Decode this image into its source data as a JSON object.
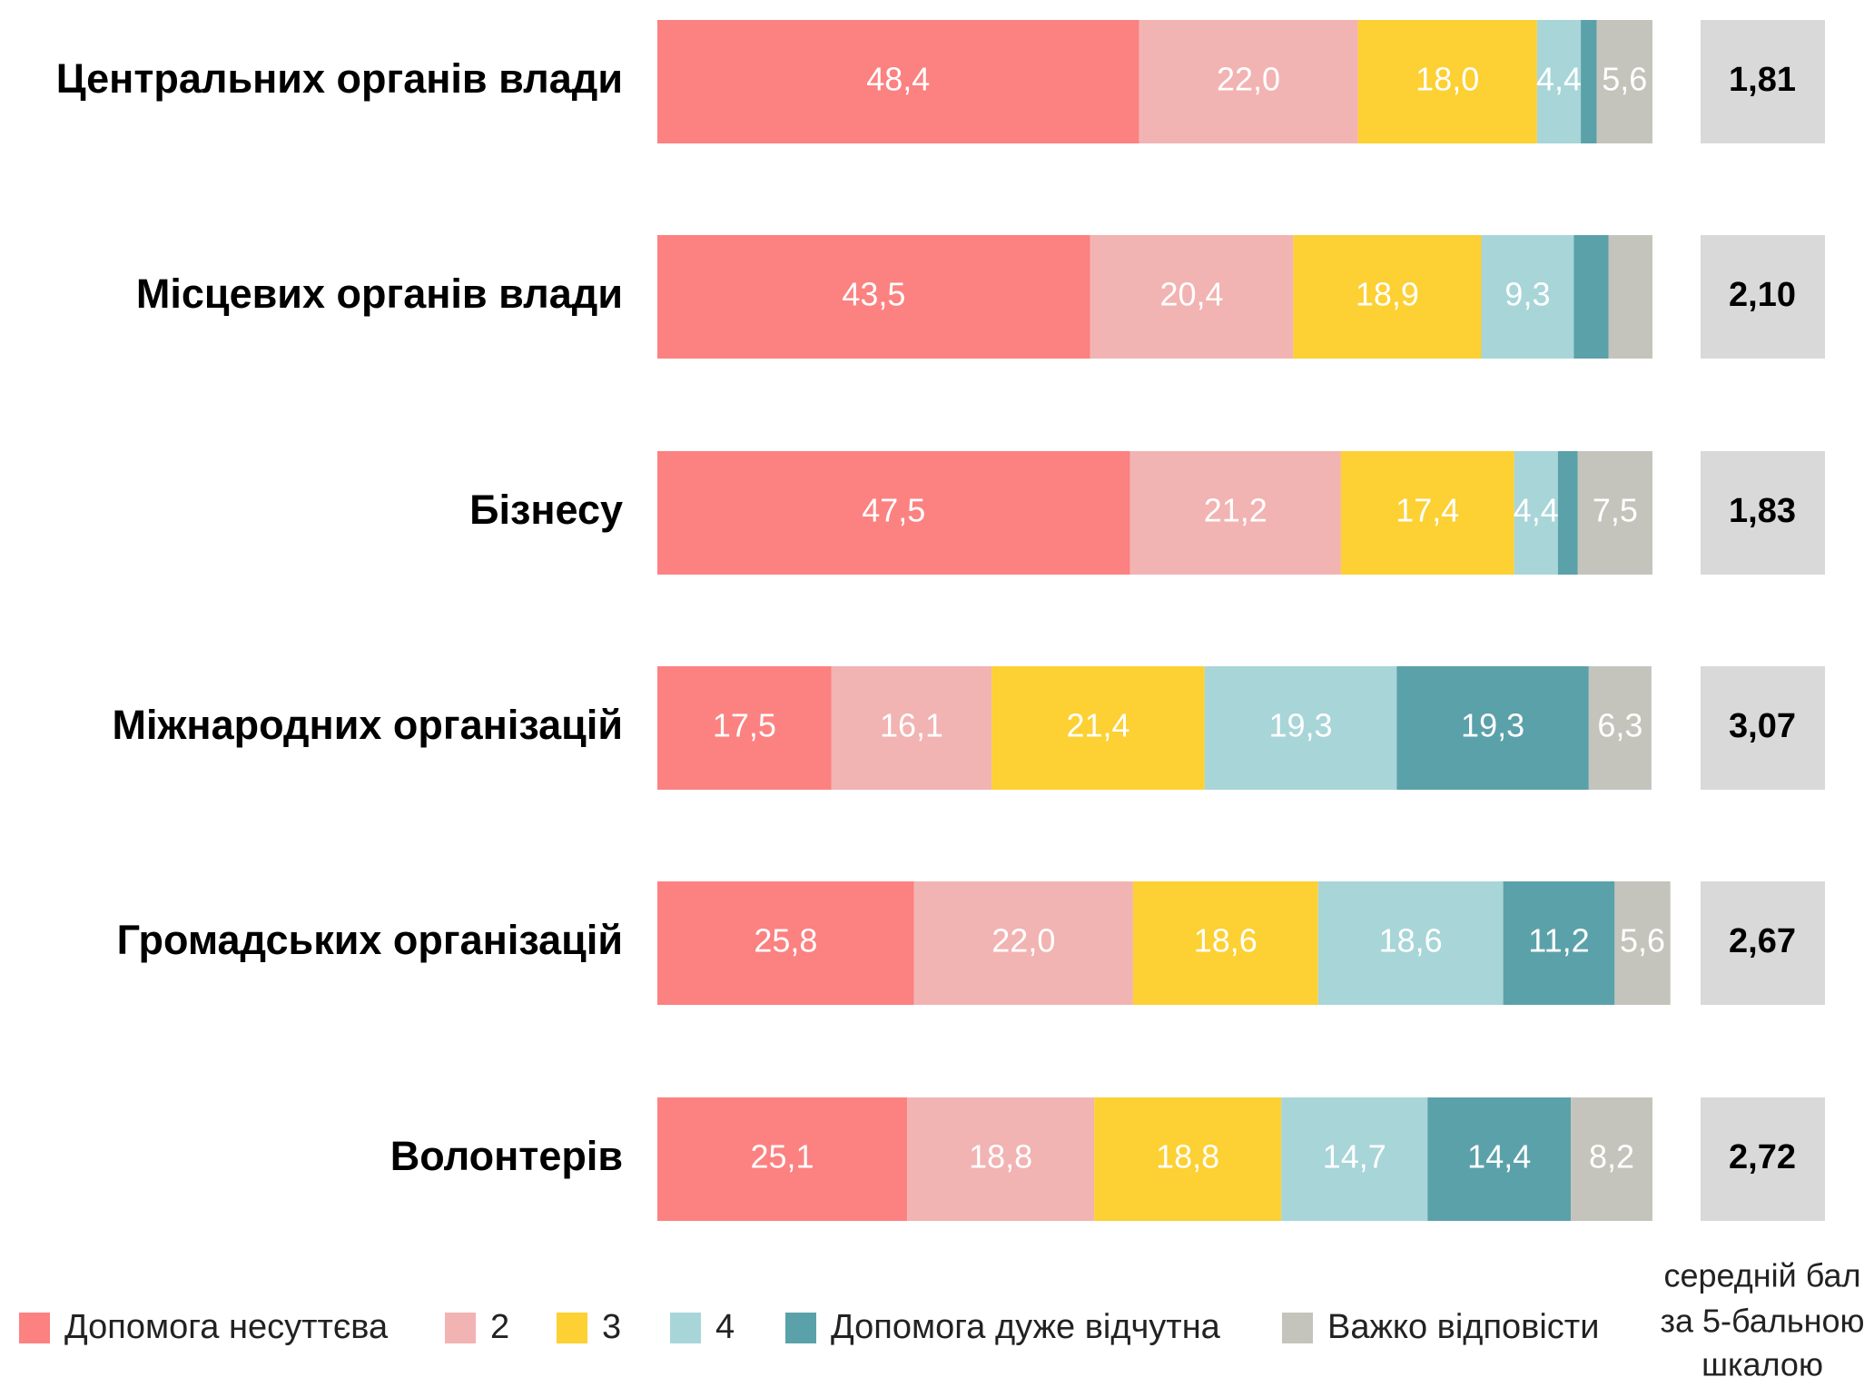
{
  "chart_data": {
    "type": "bar",
    "orientation": "horizontal",
    "stacked": true,
    "categories": [
      "Центральних органів влади",
      "Місцевих органів влади",
      "Бізнесу",
      "Міжнародних організацій",
      "Громадських організацій",
      "Волонтерів"
    ],
    "xlim": [
      0,
      100
    ],
    "series": [
      {
        "name": "Допомога несуттєва",
        "color": "#fc8181",
        "values": [
          48.4,
          43.5,
          47.5,
          17.5,
          25.8,
          25.1
        ],
        "value_labels": [
          "48,4",
          "43,5",
          "47,5",
          "17,5",
          "25,8",
          "25,1"
        ]
      },
      {
        "name": "2",
        "color": "#f2b3b3",
        "values": [
          22.0,
          20.4,
          21.2,
          16.1,
          22.0,
          18.8
        ],
        "value_labels": [
          "22,0",
          "20,4",
          "21,2",
          "16,1",
          "22,0",
          "18,8"
        ]
      },
      {
        "name": "3",
        "color": "#fdd033",
        "values": [
          18.0,
          18.9,
          17.4,
          21.4,
          18.6,
          18.8
        ],
        "value_labels": [
          "18,0",
          "18,9",
          "17,4",
          "21,4",
          "18,6",
          "18,8"
        ]
      },
      {
        "name": "4",
        "color": "#a8d5d8",
        "values": [
          4.4,
          9.3,
          4.4,
          19.3,
          18.6,
          14.7
        ],
        "value_labels": [
          "4,4",
          "9,3",
          "4,4",
          "19,3",
          "18,6",
          "14,7"
        ]
      },
      {
        "name": "Допомога дуже відчутна",
        "color": "#5ba1aa",
        "values": [
          1.6,
          3.5,
          2.0,
          19.3,
          11.2,
          14.4
        ],
        "value_labels": [
          null,
          null,
          null,
          "19,3",
          "11,2",
          "14,4"
        ]
      },
      {
        "name": "Важко відповісти",
        "color": "#c4c4bc",
        "values": [
          5.6,
          4.4,
          7.5,
          6.3,
          5.6,
          8.2
        ],
        "value_labels": [
          "5,6",
          null,
          "7,5",
          "6,3",
          "5,6",
          "8,2"
        ]
      }
    ],
    "mean_scores": {
      "values": [
        1.81,
        2.1,
        1.83,
        3.07,
        2.67,
        2.72
      ],
      "value_labels": [
        "1,81",
        "2,10",
        "1,83",
        "3,07",
        "2,67",
        "2,72"
      ],
      "color": "#d9d9d9"
    },
    "mean_label": [
      "середній бал",
      "за 5-бальною",
      "шкалою"
    ]
  }
}
